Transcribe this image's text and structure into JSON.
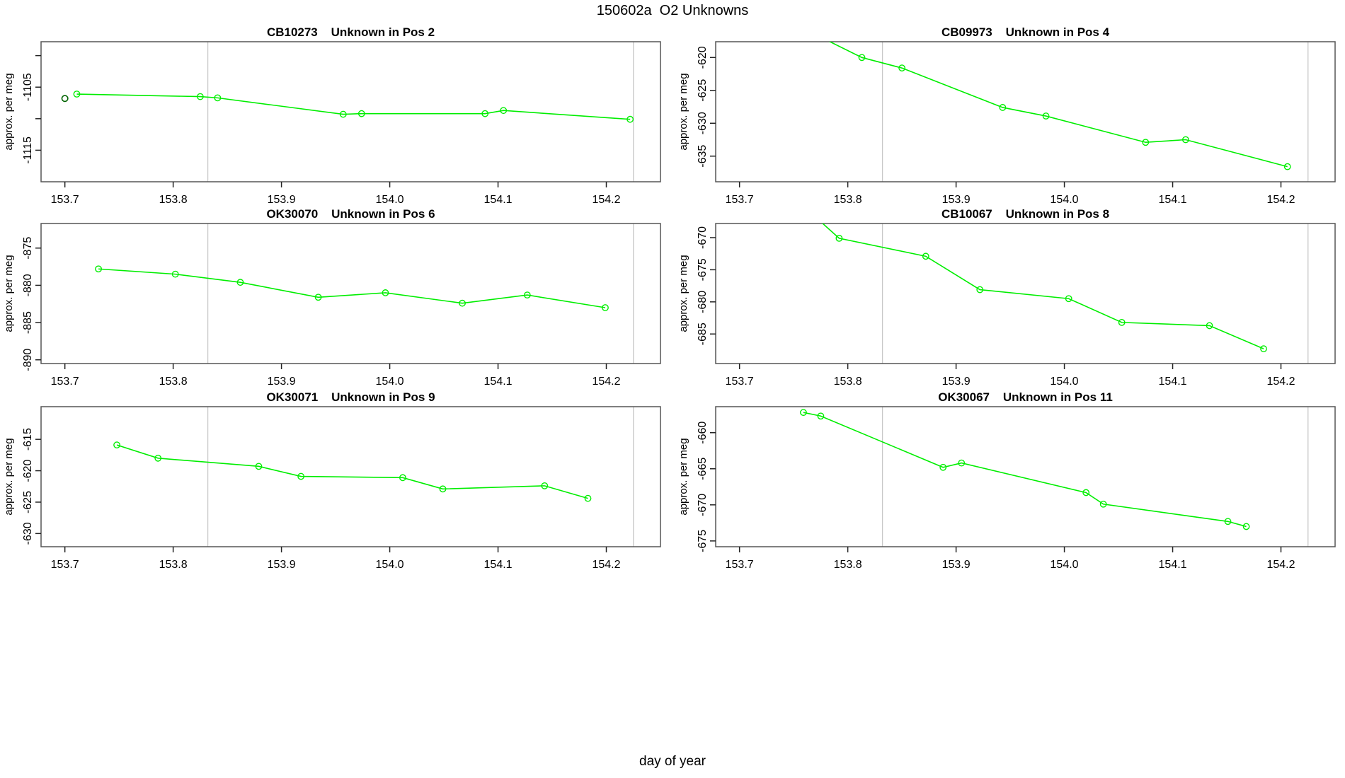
{
  "figure": {
    "title": "150602a  O2 Unknowns",
    "xlabel": "day of year"
  },
  "chart_data": {
    "type": "line",
    "title": "150602a  O2 Unknowns",
    "xlabel": "day of year",
    "ylabel": "approx. per meg",
    "layout_hint": "3 rows x 2 columns of panels, open-circle markers, no grid, no legend",
    "common": {
      "xlim": [
        153.678,
        154.25
      ],
      "xticks": [
        153.7,
        153.8,
        153.9,
        154.0,
        154.1,
        154.2
      ],
      "xtick_labels": [
        "153.7",
        "153.8",
        "153.9",
        "154.0",
        "154.1",
        "154.2"
      ],
      "vlines": [
        153.832,
        154.225
      ],
      "vline_color": "#c8c8c8",
      "line_color": "#00ee00",
      "marker": "open-circle",
      "outlier_color": "#006400"
    },
    "panels": [
      {
        "title": "CB10273    Unknown in Pos 2",
        "ylabel": "approx. per meg",
        "x": [
          153.711,
          153.825,
          153.841,
          153.957,
          153.974,
          154.088,
          154.105,
          154.222
        ],
        "y": [
          -1106.1,
          -1106.5,
          -1106.7,
          -1109.3,
          -1109.2,
          -1109.2,
          -1108.7,
          -1110.1
        ],
        "ylim": [
          -1120.0,
          -1097.8
        ],
        "yticks": [
          -1100,
          -1105,
          -1110,
          -1115
        ],
        "ytick_labels": [
          "",
          "-1105",
          "",
          "-1115"
        ],
        "extra_point": {
          "x": 153.7,
          "y": -1106.8,
          "color": "#006400"
        }
      },
      {
        "title": "CB09973    Unknown in Pos 4",
        "ylabel": "approx. per meg",
        "x": [
          153.77,
          153.813,
          153.85,
          153.943,
          153.983,
          154.075,
          154.112,
          154.206
        ],
        "y": [
          -616.5,
          -620.0,
          -621.6,
          -627.6,
          -628.9,
          -632.9,
          -632.5,
          -636.6
        ],
        "ylim": [
          -638.9,
          -617.6
        ],
        "yticks": [
          -620,
          -625,
          -630,
          -635
        ],
        "ytick_labels": [
          "-620",
          "-625",
          "-630",
          "-635"
        ]
      },
      {
        "title": "OK30070    Unknown in Pos 6",
        "ylabel": "approx. per meg",
        "x": [
          153.731,
          153.802,
          153.862,
          153.934,
          153.996,
          154.067,
          154.127,
          154.199
        ],
        "y": [
          -877.8,
          -878.5,
          -879.6,
          -881.6,
          -881.0,
          -882.4,
          -881.3,
          -883.0
        ],
        "ylim": [
          -890.5,
          -871.7
        ],
        "yticks": [
          -875,
          -880,
          -885,
          -890
        ],
        "ytick_labels": [
          "-875",
          "-880",
          "-885",
          "-890"
        ]
      },
      {
        "title": "CB10067    Unknown in Pos 8",
        "ylabel": "approx. per meg",
        "x": [
          153.765,
          153.792,
          153.872,
          153.922,
          154.004,
          154.053,
          154.134,
          154.184
        ],
        "y": [
          -666.0,
          -670.1,
          -672.9,
          -678.1,
          -679.5,
          -683.2,
          -683.7,
          -687.3
        ],
        "ylim": [
          -689.6,
          -667.8
        ],
        "yticks": [
          -670,
          -675,
          -680,
          -685
        ],
        "ytick_labels": [
          "-670",
          "-675",
          "-680",
          "-685"
        ]
      },
      {
        "title": "OK30071    Unknown in Pos 9",
        "ylabel": "approx. per meg",
        "x": [
          153.748,
          153.786,
          153.879,
          153.918,
          154.012,
          154.049,
          154.143,
          154.183
        ],
        "y": [
          -615.9,
          -618.0,
          -619.3,
          -620.9,
          -621.1,
          -622.9,
          -622.4,
          -624.4
        ],
        "ylim": [
          -632.1,
          -609.8
        ],
        "yticks": [
          -615,
          -620,
          -625,
          -630
        ],
        "ytick_labels": [
          "-615",
          "-620",
          "-625",
          "-630"
        ]
      },
      {
        "title": "OK30067    Unknown in Pos 11",
        "ylabel": "approx. per meg",
        "x": [
          153.759,
          153.775,
          153.888,
          153.905,
          154.02,
          154.036,
          154.151,
          154.168
        ],
        "y": [
          -657.2,
          -657.7,
          -664.8,
          -664.2,
          -668.3,
          -669.9,
          -672.3,
          -673.0
        ],
        "ylim": [
          -675.8,
          -656.4
        ],
        "yticks": [
          -660,
          -665,
          -670,
          -675
        ],
        "ytick_labels": [
          "-660",
          "-665",
          "-670",
          "-675"
        ]
      }
    ]
  }
}
